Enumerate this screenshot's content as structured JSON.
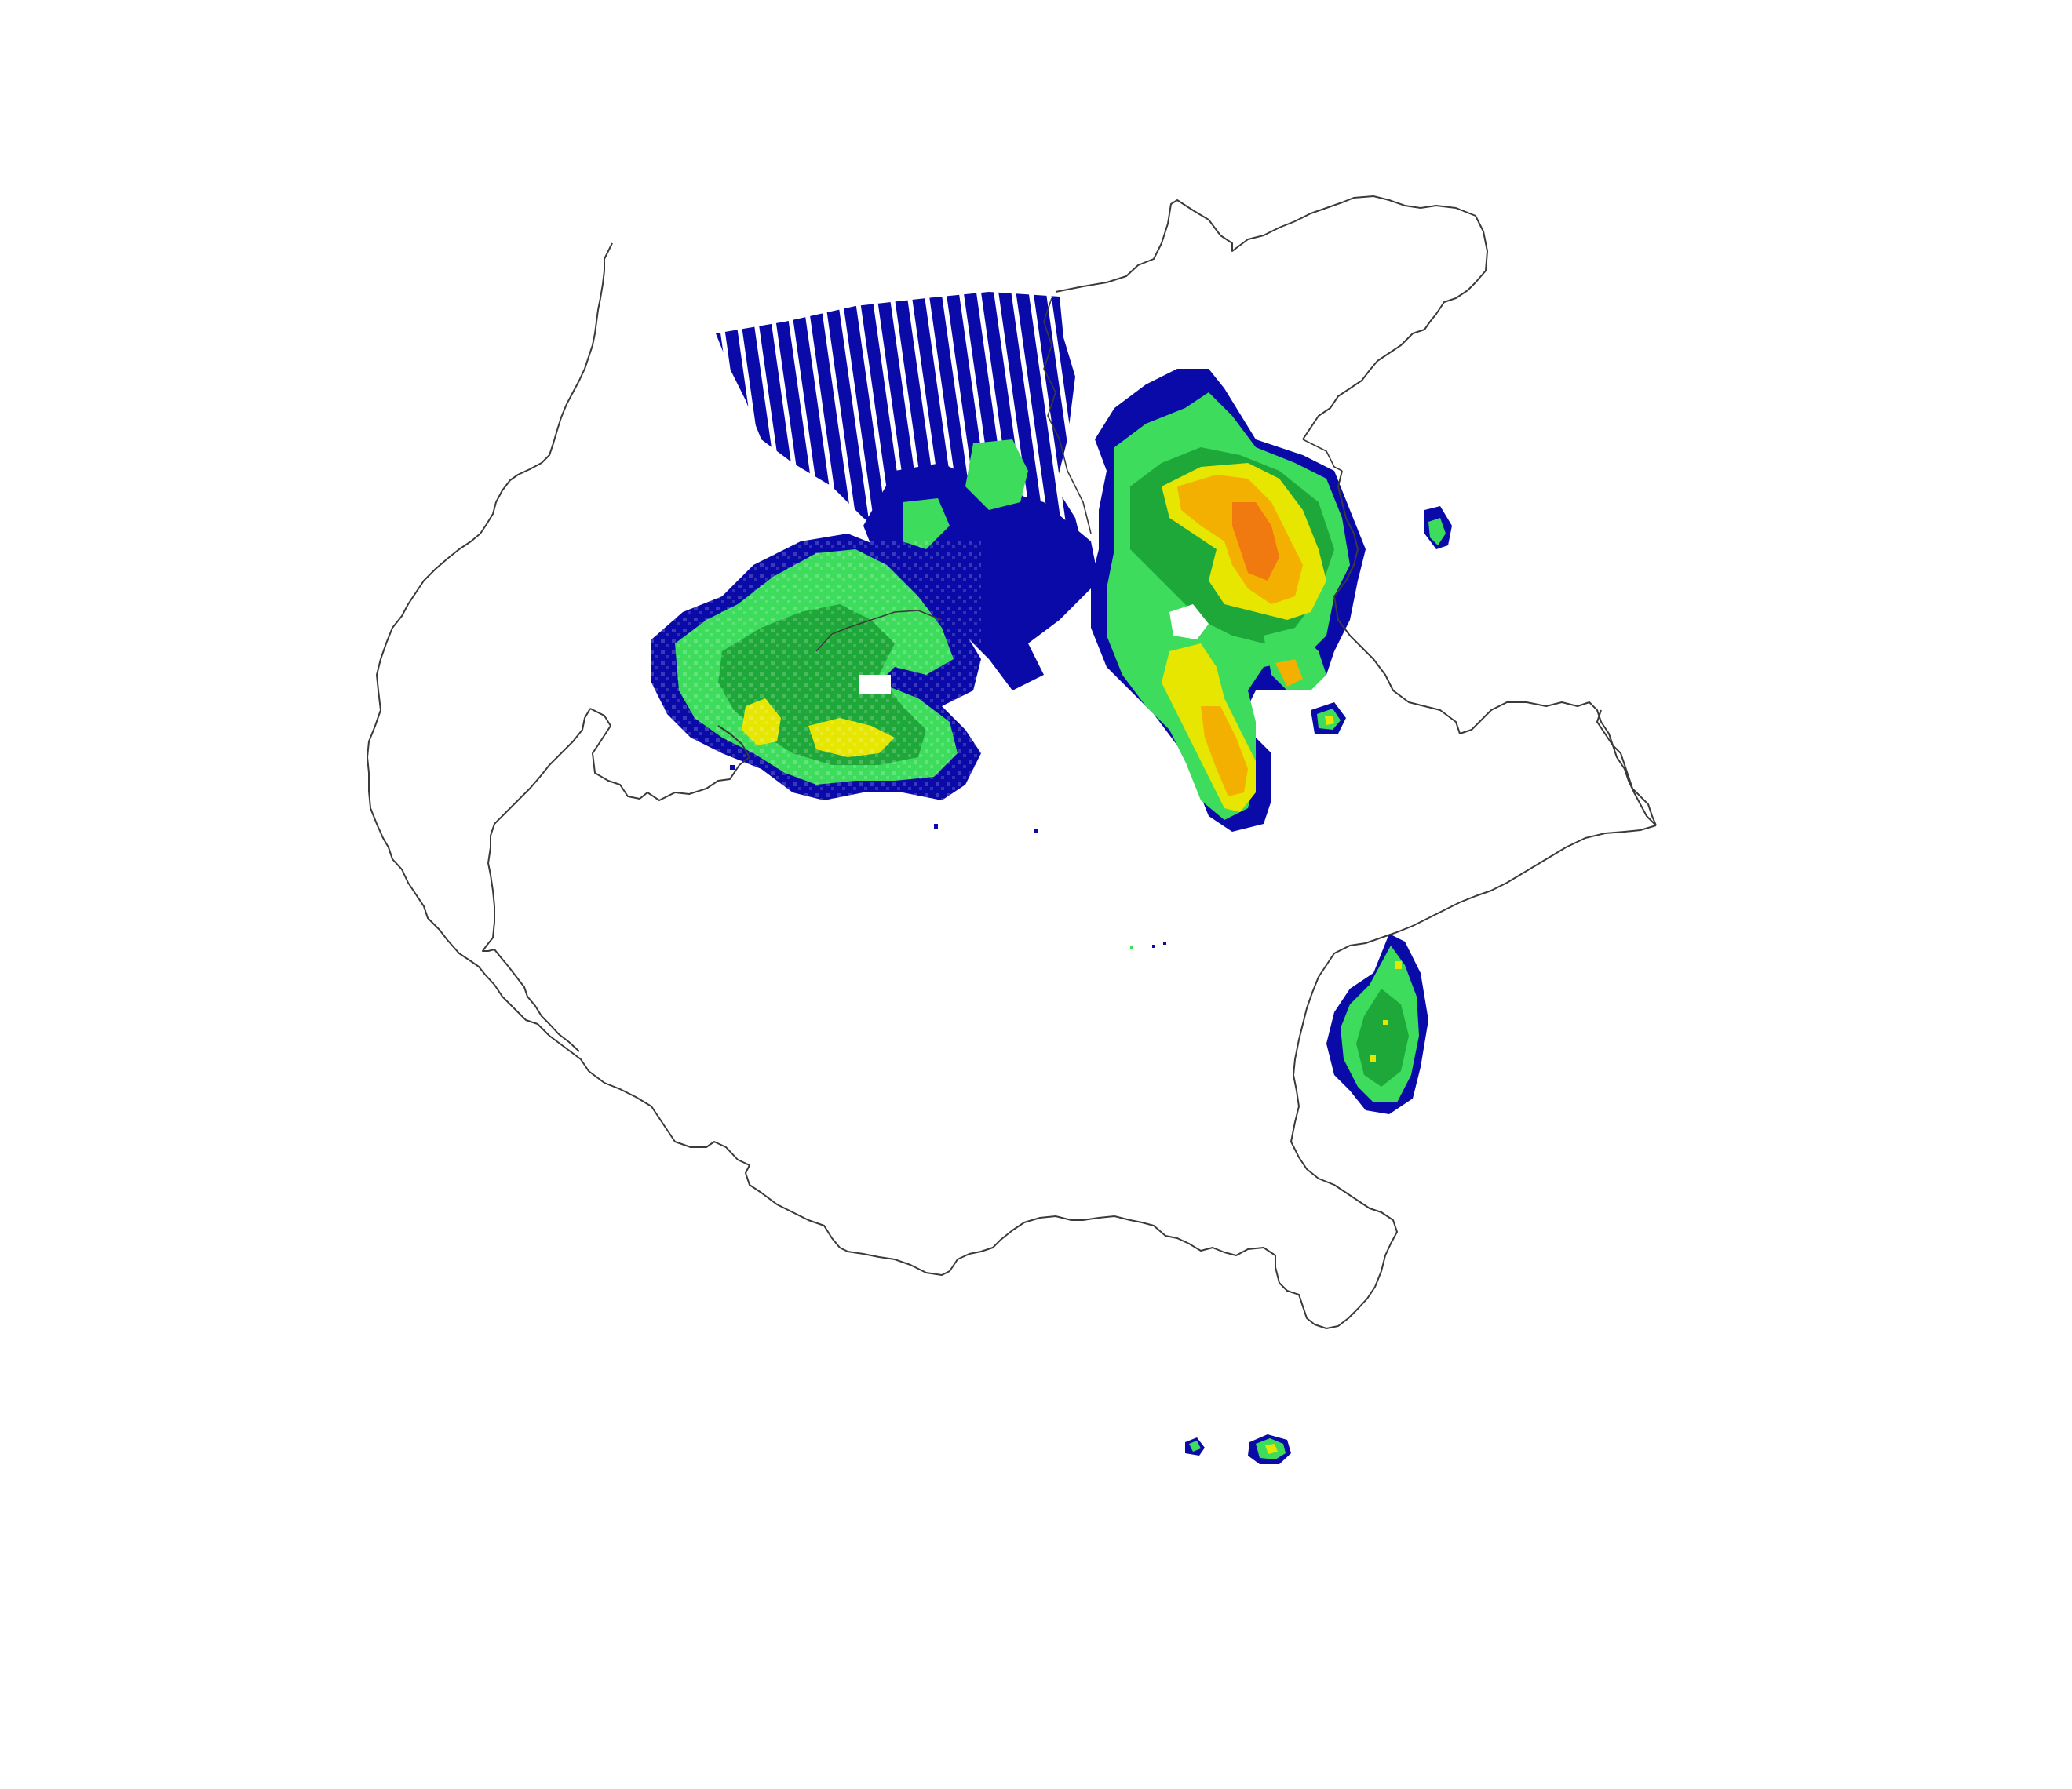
{
  "map": {
    "type": "weather-radar-reflectivity",
    "background": "#ffffff",
    "boundary_color": "#3a3a3a",
    "palette": {
      "very_light": "#0a0aa8",
      "light": "#3ddc5c",
      "moderate": "#1fa83a",
      "heavy": "#e6e600",
      "intense": "#f4b000",
      "very_intense": "#f07a10"
    },
    "precipitation_cells": [
      {
        "name": "northwest-radial-band",
        "level": "very_light"
      },
      {
        "name": "west-cluster",
        "level": "heavy"
      },
      {
        "name": "central-north-cluster",
        "level": "very_intense"
      },
      {
        "name": "southeast-offshore-cell",
        "level": "heavy"
      },
      {
        "name": "east-small-cell",
        "level": "light"
      },
      {
        "name": "south-offshore-cells",
        "level": "heavy"
      }
    ],
    "legend": null,
    "title": ""
  }
}
